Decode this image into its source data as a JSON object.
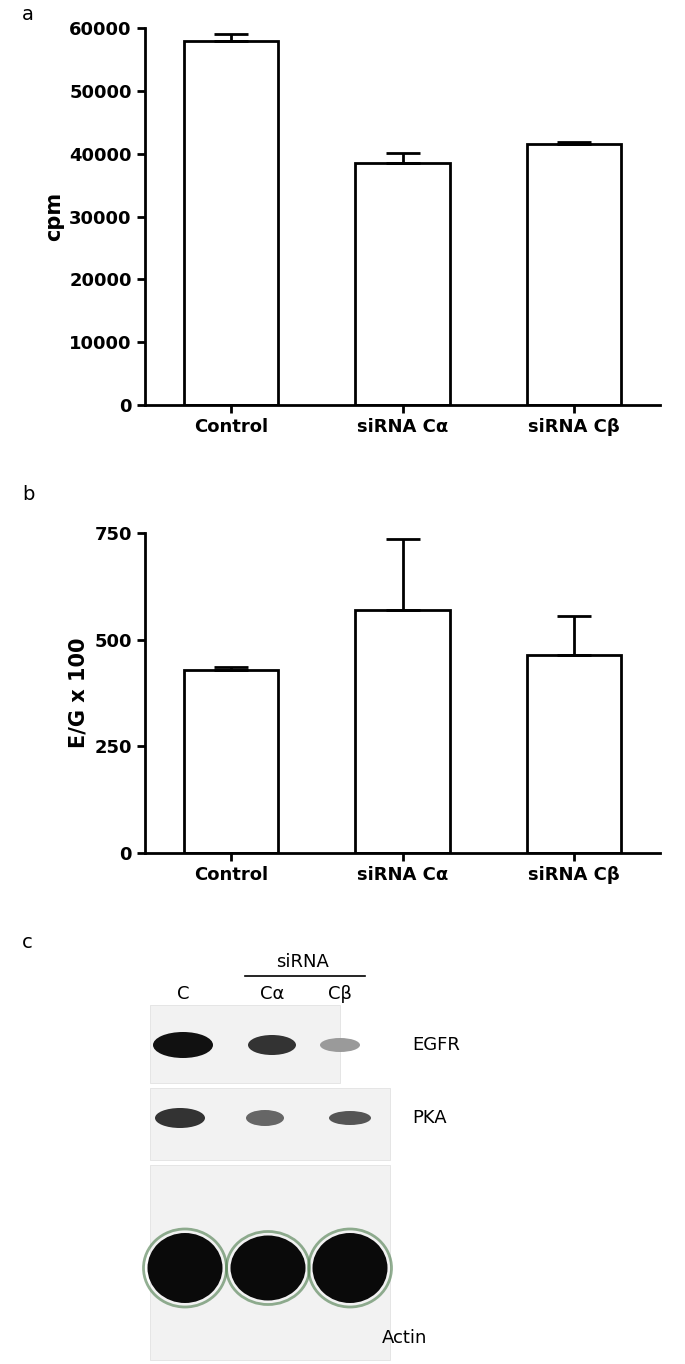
{
  "chart_data": [
    {
      "type": "bar",
      "ylabel": "cpm",
      "categories": [
        "Control",
        "siRNA Cα",
        "siRNA Cβ"
      ],
      "values": [
        58000,
        38500,
        41500
      ],
      "errors": [
        1000,
        1600,
        300
      ],
      "color": "#ffffff",
      "ylim": [
        0,
        60000
      ],
      "yticks": [
        0,
        10000,
        20000,
        30000,
        40000,
        50000,
        60000
      ]
    },
    {
      "type": "bar",
      "ylabel": "E/G x 100",
      "categories": [
        "Control",
        "siRNA Cα",
        "siRNA Cβ"
      ],
      "values": [
        430,
        570,
        465
      ],
      "errors": [
        5,
        165,
        90
      ],
      "color": "#ffffff",
      "ylim": [
        0,
        750
      ],
      "yticks": [
        0,
        250,
        500,
        750
      ]
    }
  ],
  "panel_labels": [
    "a",
    "b",
    "c"
  ],
  "blot": {
    "group_label": "siRNA",
    "lanes": [
      "C",
      "Cα",
      "Cβ"
    ],
    "rows": [
      "EGFR",
      "PKA",
      "Actin"
    ]
  }
}
